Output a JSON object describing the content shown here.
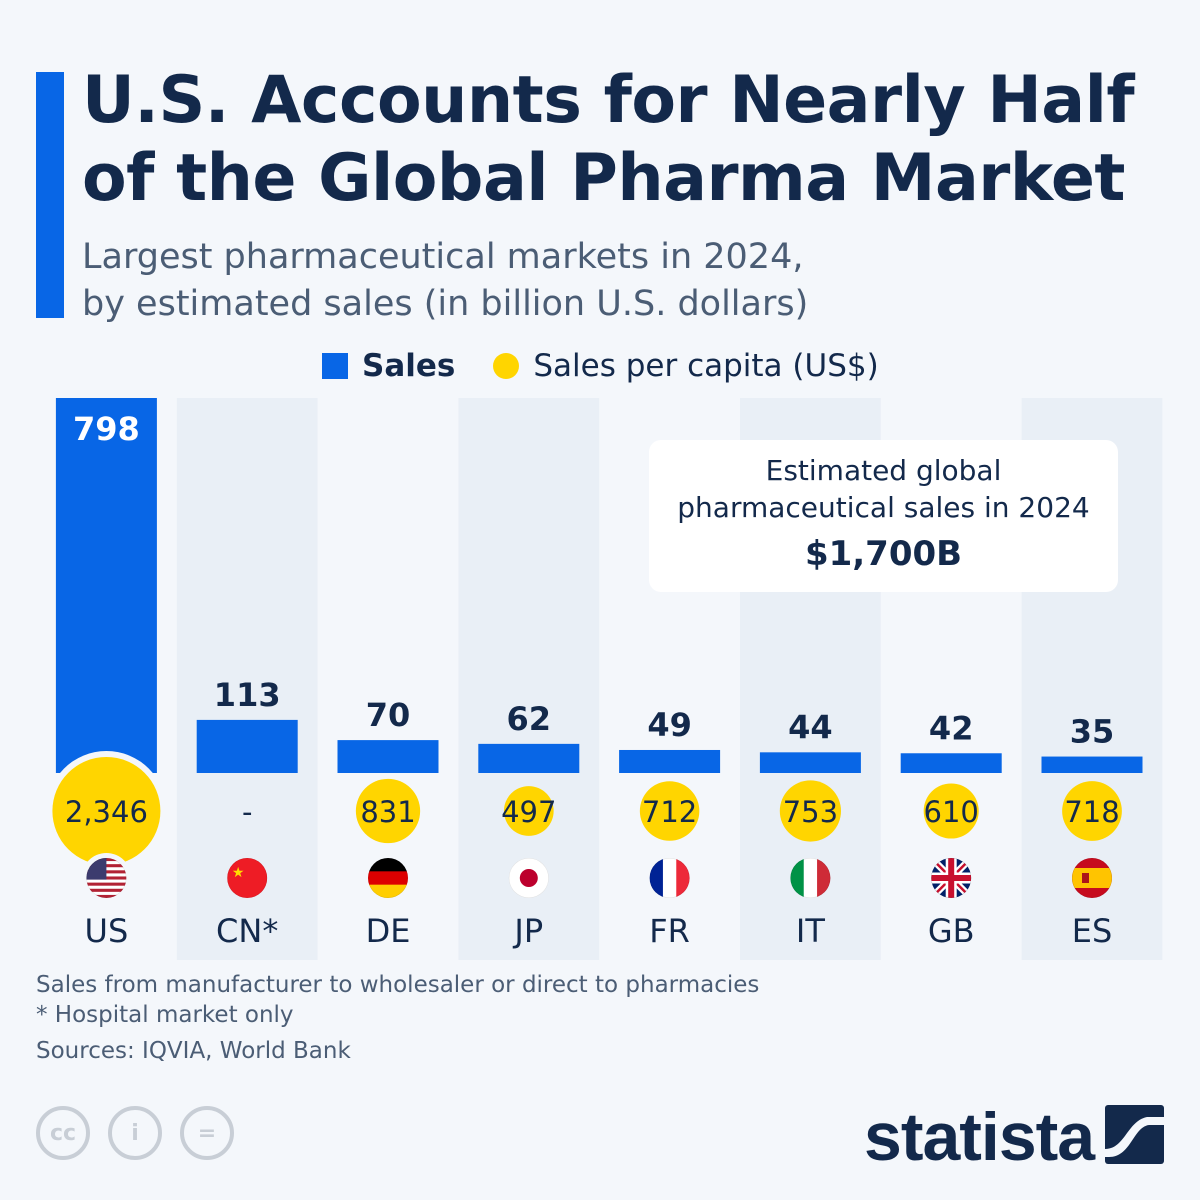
{
  "title": "U.S. Accounts for Nearly Half of the Global Pharma Market",
  "title_lines": [
    "U.S. Accounts for Nearly Half",
    "of the Global Pharma Market"
  ],
  "subtitle_lines": [
    "Largest pharmaceutical markets in 2024,",
    "by estimated sales (in billion U.S. dollars)"
  ],
  "legend": {
    "sales": "Sales",
    "per_capita": "Sales per capita (US$)"
  },
  "callout": {
    "line1": "Estimated global",
    "line2": "pharmaceutical sales in 2024",
    "value": "$1,700B"
  },
  "notes": [
    "Sales from manufacturer to wholesaler or direct to pharmacies",
    "* Hospital market only"
  ],
  "sources": "Sources: IQVIA, World Bank",
  "brand": "statista",
  "colors": {
    "bar": "#0866e6",
    "dot": "#ffd500",
    "text": "#13294b",
    "shade": "#e9eff6"
  },
  "chart_data": {
    "type": "bar",
    "categories": [
      "US",
      "CN*",
      "DE",
      "JP",
      "FR",
      "IT",
      "GB",
      "ES"
    ],
    "series": [
      {
        "name": "Sales",
        "values": [
          798,
          113,
          70,
          62,
          49,
          44,
          42,
          35
        ],
        "labels": [
          "798",
          "113",
          "70",
          "62",
          "49",
          "44",
          "42",
          "35"
        ]
      },
      {
        "name": "Sales per capita (US$)",
        "values": [
          2346,
          null,
          831,
          497,
          712,
          753,
          610,
          718
        ],
        "labels": [
          "2,346",
          "-",
          "831",
          "497",
          "712",
          "753",
          "610",
          "718"
        ]
      }
    ],
    "flags": [
      "us-flag-icon",
      "cn-flag-icon",
      "de-flag-icon",
      "jp-flag-icon",
      "fr-flag-icon",
      "it-flag-icon",
      "gb-flag-icon",
      "es-flag-icon"
    ],
    "unit": "billion U.S. dollars"
  }
}
